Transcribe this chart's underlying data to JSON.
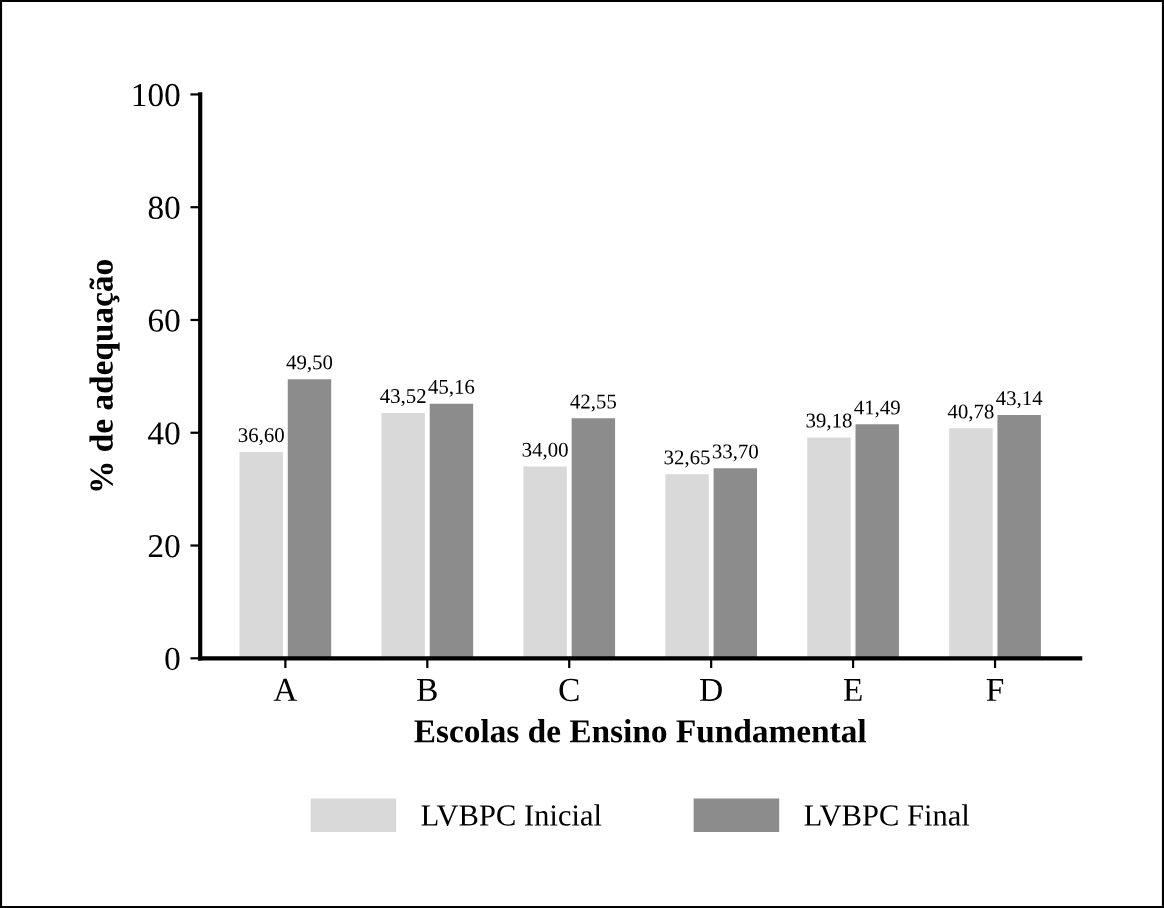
{
  "chart_data": {
    "type": "bar",
    "xlabel": "Escolas de Ensino Fundamental",
    "ylabel": "% de adequação",
    "categories": [
      "A",
      "B",
      "C",
      "D",
      "E",
      "F"
    ],
    "series": [
      {
        "name": "LVBPC Inicial",
        "color": "#d9d9d9",
        "values": [
          36.6,
          43.52,
          34.0,
          32.65,
          39.18,
          40.78
        ],
        "value_labels": [
          "36,60",
          "43,52",
          "34,00",
          "32,65",
          "39,18",
          "40,78"
        ]
      },
      {
        "name": "LVBPC Final",
        "color": "#8c8c8c",
        "values": [
          49.5,
          45.16,
          42.55,
          33.7,
          41.49,
          43.14
        ],
        "value_labels": [
          "49,50",
          "45,16",
          "42,55",
          "33,70",
          "41,49",
          "43,14"
        ]
      }
    ],
    "ylim": [
      0,
      100
    ],
    "yticks": [
      0,
      20,
      40,
      60,
      80,
      100
    ],
    "grid": false,
    "legend": "bottom"
  }
}
